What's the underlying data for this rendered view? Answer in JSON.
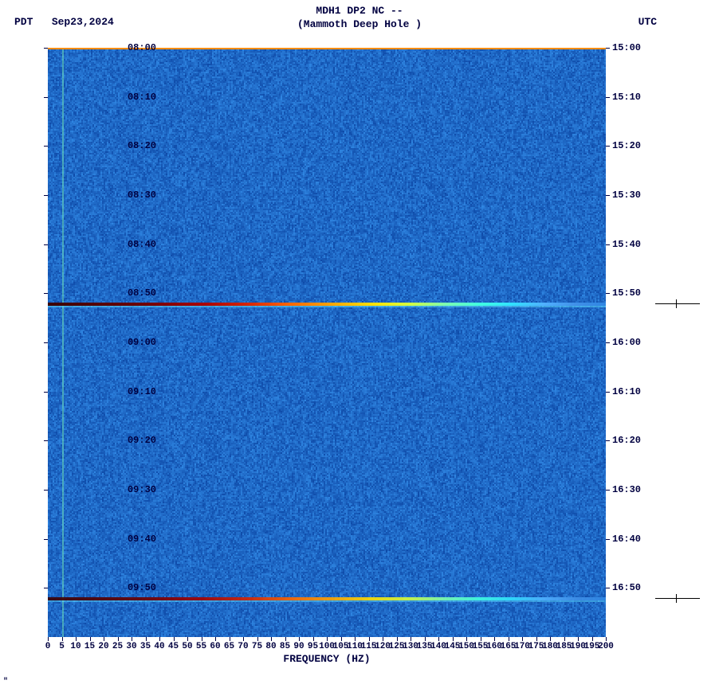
{
  "title_line1": "MDH1 DP2 NC --",
  "title_line2": "(Mammoth Deep Hole )",
  "left_tz": "PDT",
  "date": "Sep23,2024",
  "right_tz": "UTC",
  "xaxis_title": "FREQUENCY (HZ)",
  "footer": "\"",
  "spectrogram": {
    "type": "heatmap",
    "x_range_hz": [
      0,
      200
    ],
    "x_tick_step": 5,
    "y_left_start": "08:00",
    "y_left_end": "09:50",
    "y_right_start": "15:00",
    "y_right_end": "16:50",
    "y_tick_step_min": 10,
    "background_rgb_low": "#0e4aa8",
    "background_rgb_high": "#2f86e2",
    "thin_v_line_hz": 5,
    "thin_v_line_color": "#6fe2b8",
    "event_bands": [
      {
        "time_left": "08:52",
        "intensity": 1.0
      },
      {
        "time_left": "09:52",
        "intensity": 0.9
      }
    ],
    "event_gradient_stops": [
      "#3a0000",
      "#6b0000",
      "#a30000",
      "#d62400",
      "#ff6a00",
      "#ffa800",
      "#ffe000",
      "#d4ff40",
      "#7dffb0",
      "#40ffe0",
      "#30e0ff",
      "#50b0ff",
      "#4090e8",
      "#2f86e2"
    ],
    "top_edge_color": "#ff8c00",
    "font_family": "Courier New",
    "label_fontsize": 12,
    "title_fontsize": 13,
    "text_color": "#000040",
    "plot_bg": "#ffffff"
  },
  "left_ylabels": [
    "08:00",
    "08:10",
    "08:20",
    "08:30",
    "08:40",
    "08:50",
    "09:00",
    "09:10",
    "09:20",
    "09:30",
    "09:40",
    "09:50"
  ],
  "right_ylabels": [
    "15:00",
    "15:10",
    "15:20",
    "15:30",
    "15:40",
    "15:50",
    "16:00",
    "16:10",
    "16:20",
    "16:30",
    "16:40",
    "16:50"
  ],
  "xlabels": [
    "0",
    "5",
    "10",
    "15",
    "20",
    "25",
    "30",
    "35",
    "40",
    "45",
    "50",
    "55",
    "60",
    "65",
    "70",
    "75",
    "80",
    "85",
    "90",
    "95",
    "100",
    "105",
    "110",
    "115",
    "120",
    "125",
    "130",
    "135",
    "140",
    "145",
    "150",
    "155",
    "160",
    "165",
    "170",
    "175",
    "180",
    "185",
    "190",
    "195",
    "200"
  ]
}
